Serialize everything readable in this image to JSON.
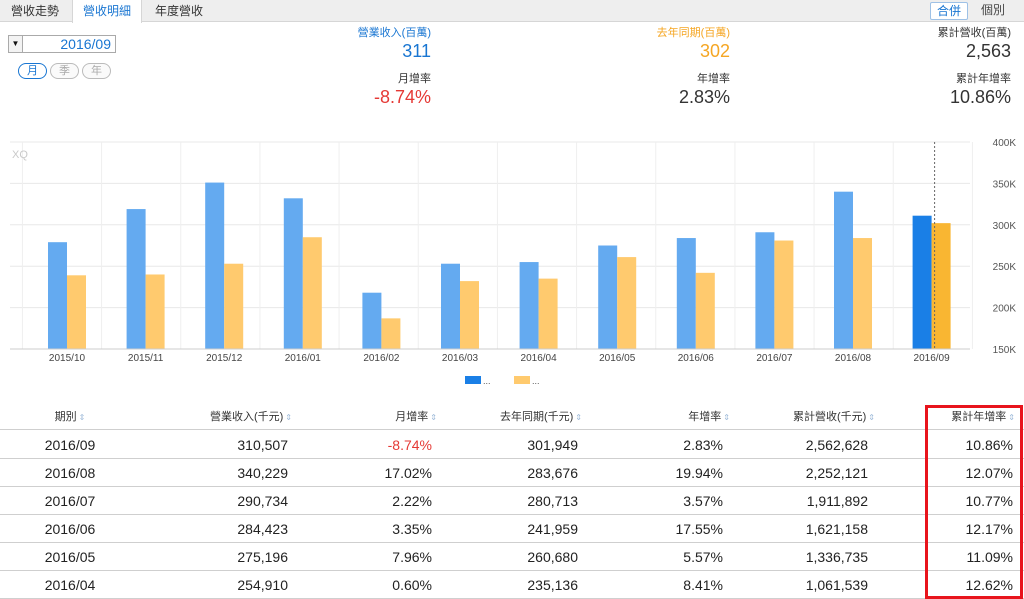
{
  "tabs": [
    {
      "label": "營收走勢",
      "active": false
    },
    {
      "label": "營收明細",
      "active": true
    },
    {
      "label": "年度營收",
      "active": false
    }
  ],
  "view_toggle": {
    "merged": "合併",
    "individual": "個別"
  },
  "date_select": {
    "value": "2016/09"
  },
  "period_buttons": [
    {
      "label": "月",
      "active": true
    },
    {
      "label": "季",
      "active": false
    },
    {
      "label": "年",
      "active": false
    }
  ],
  "summary": {
    "revenue": {
      "label": "營業收入(百萬)",
      "value": "311"
    },
    "last_year": {
      "label": "去年同期(百萬)",
      "value": "302"
    },
    "cumulative": {
      "label": "累計營收(百萬)",
      "value": "2,563"
    },
    "mom": {
      "label": "月增率",
      "value": "-8.74%"
    },
    "yoy": {
      "label": "年增率",
      "value": "2.83%"
    },
    "cum_yoy": {
      "label": "累計年增率",
      "value": "10.86%"
    }
  },
  "colors": {
    "accent": "#1976d2",
    "revenue_bar": "#64aaf0",
    "revenue_bar_current": "#1a7fe6",
    "last_year_bar": "#ffca6e",
    "last_year_bar_current": "#f9b632",
    "negative": "#e53935",
    "highlight": "#e8141c"
  },
  "chart_data": {
    "type": "bar",
    "watermark": "XQ",
    "categories": [
      "2015/10",
      "2015/11",
      "2015/12",
      "2016/01",
      "2016/02",
      "2016/03",
      "2016/04",
      "2016/05",
      "2016/06",
      "2016/07",
      "2016/08",
      "2016/09"
    ],
    "series": [
      {
        "name": "...",
        "values": [
          279,
          319,
          351,
          332,
          218,
          253,
          255,
          275,
          284,
          291,
          340,
          311
        ]
      },
      {
        "name": "...",
        "values": [
          239,
          240,
          253,
          285,
          187,
          232,
          235,
          261,
          242,
          281,
          284,
          302
        ]
      }
    ],
    "ylim": [
      150,
      400
    ],
    "yticks": [
      "150K",
      "200K",
      "250K",
      "300K",
      "350K",
      "400K"
    ],
    "grid": true,
    "y_axis_side": "right",
    "legend_position": "bottom"
  },
  "table": {
    "headers": [
      "期別",
      "營業收入(千元)",
      "月增率",
      "去年同期(千元)",
      "年增率",
      "累計營收(千元)",
      "累計年增率"
    ],
    "rows": [
      [
        "2016/09",
        "310,507",
        "-8.74%",
        "301,949",
        "2.83%",
        "2,562,628",
        "10.86%"
      ],
      [
        "2016/08",
        "340,229",
        "17.02%",
        "283,676",
        "19.94%",
        "2,252,121",
        "12.07%"
      ],
      [
        "2016/07",
        "290,734",
        "2.22%",
        "280,713",
        "3.57%",
        "1,911,892",
        "10.77%"
      ],
      [
        "2016/06",
        "284,423",
        "3.35%",
        "241,959",
        "17.55%",
        "1,621,158",
        "12.17%"
      ],
      [
        "2016/05",
        "275,196",
        "7.96%",
        "260,680",
        "5.57%",
        "1,336,735",
        "11.09%"
      ],
      [
        "2016/04",
        "254,910",
        "0.60%",
        "235,136",
        "8.41%",
        "1,061,539",
        "12.62%"
      ]
    ]
  }
}
